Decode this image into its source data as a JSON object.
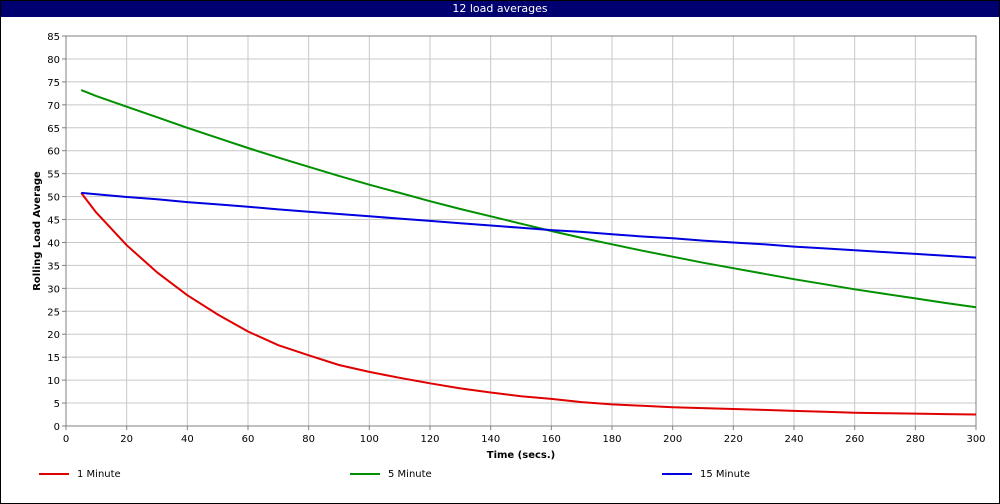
{
  "chart_data": {
    "type": "line",
    "title": "12 load averages",
    "xlabel": "Time (secs.)",
    "ylabel": "Rolling Load Average",
    "xlim": [
      0,
      300
    ],
    "ylim": [
      0,
      85
    ],
    "x_ticks": [
      0,
      20,
      40,
      60,
      80,
      100,
      120,
      140,
      160,
      180,
      200,
      220,
      240,
      260,
      280,
      300
    ],
    "y_ticks": [
      0,
      5,
      10,
      15,
      20,
      25,
      30,
      35,
      40,
      45,
      50,
      55,
      60,
      65,
      70,
      75,
      80,
      85
    ],
    "grid": true,
    "legend_position": "bottom",
    "x": [
      5,
      10,
      20,
      30,
      40,
      50,
      60,
      70,
      80,
      90,
      100,
      110,
      120,
      130,
      140,
      150,
      160,
      170,
      180,
      190,
      200,
      210,
      220,
      230,
      240,
      250,
      260,
      270,
      280,
      290,
      300
    ],
    "series": [
      {
        "name": "1 Minute",
        "color": "#e00000",
        "values": [
          50.8,
          46.5,
          39.4,
          33.5,
          28.5,
          24.3,
          20.6,
          17.6,
          15.4,
          13.3,
          11.8,
          10.5,
          9.3,
          8.2,
          7.3,
          6.5,
          5.9,
          5.2,
          4.7,
          4.4,
          4.1,
          3.9,
          3.7,
          3.5,
          3.3,
          3.1,
          2.9,
          2.8,
          2.7,
          2.6,
          2.5
        ]
      },
      {
        "name": "5 Minute",
        "color": "#009000",
        "values": [
          73.2,
          71.9,
          69.6,
          67.3,
          65.0,
          62.8,
          60.6,
          58.5,
          56.5,
          54.5,
          52.6,
          50.8,
          49.0,
          47.3,
          45.7,
          44.1,
          42.5,
          41.0,
          39.6,
          38.2,
          36.9,
          35.6,
          34.4,
          33.2,
          32.0,
          30.9,
          29.8,
          28.8,
          27.8,
          26.8,
          25.9
        ]
      },
      {
        "name": "15 Minute",
        "color": "#0000e0",
        "values": [
          50.8,
          50.5,
          49.9,
          49.4,
          48.8,
          48.3,
          47.8,
          47.2,
          46.7,
          46.2,
          45.7,
          45.2,
          44.7,
          44.2,
          43.7,
          43.2,
          42.7,
          42.3,
          41.8,
          41.3,
          40.9,
          40.4,
          40.0,
          39.6,
          39.1,
          38.7,
          38.3,
          37.9,
          37.5,
          37.1,
          36.7
        ]
      }
    ]
  }
}
